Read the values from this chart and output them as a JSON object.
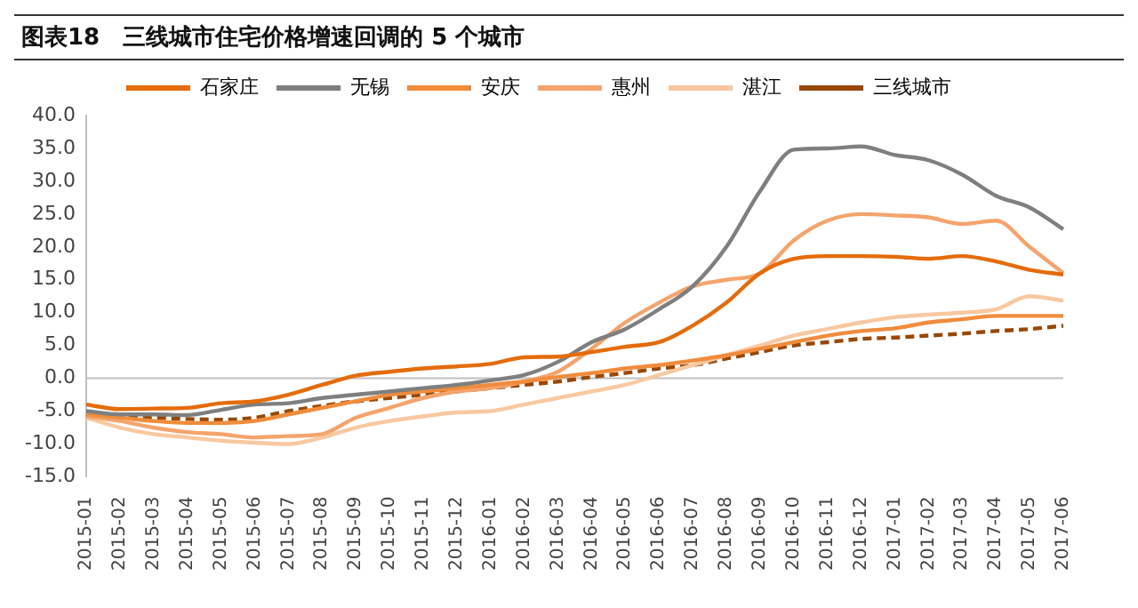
{
  "chart_data": {
    "type": "line",
    "title": "图表18　三线城市住宅价格增速回调的 5 个城市",
    "categories": [
      "2015-01",
      "2015-02",
      "2015-03",
      "2015-04",
      "2015-05",
      "2015-06",
      "2015-07",
      "2015-08",
      "2015-09",
      "2015-10",
      "2015-11",
      "2015-12",
      "2016-01",
      "2016-02",
      "2016-03",
      "2016-04",
      "2016-05",
      "2016-06",
      "2016-07",
      "2016-08",
      "2016-09",
      "2016-10",
      "2016-11",
      "2016-12",
      "2017-01",
      "2017-02",
      "2017-03",
      "2017-04",
      "2017-05",
      "2017-06"
    ],
    "series": [
      {
        "name": "石家庄",
        "color": "#e46c0a",
        "values": [
          -4,
          -4.7,
          -4.6,
          -4.5,
          -3.8,
          -3.5,
          -2.5,
          -1,
          0.4,
          1,
          1.5,
          1.8,
          2.2,
          3.2,
          3.3,
          4,
          4.8,
          5.5,
          8,
          11.5,
          16,
          18.2,
          18.6,
          18.6,
          18.5,
          18.2,
          18.6,
          17.8,
          16.5,
          15.8
        ]
      },
      {
        "name": "无锡",
        "color": "#7f7f7f",
        "values": [
          -5,
          -5.5,
          -5.5,
          -5.6,
          -4.8,
          -4,
          -3.8,
          -3,
          -2.5,
          -2,
          -1.5,
          -1,
          -0.3,
          0.5,
          2.5,
          5.5,
          7.5,
          10.5,
          14,
          20,
          28.5,
          34.8,
          35,
          35.3,
          34,
          33.2,
          31,
          27.8,
          26,
          22.7
        ]
      },
      {
        "name": "安庆",
        "color": "#f08c3c",
        "values": [
          -5.5,
          -6,
          -6.5,
          -6.8,
          -6.8,
          -6.5,
          -5.5,
          -4.5,
          -3.5,
          -2.5,
          -2,
          -1.5,
          -1,
          -0.5,
          0.2,
          0.8,
          1.5,
          2,
          2.7,
          3.5,
          4.5,
          5.5,
          6.5,
          7.2,
          7.6,
          8.5,
          9,
          9.5,
          9.5,
          9.5
        ]
      },
      {
        "name": "惠州",
        "color": "#f4a46c",
        "values": [
          -5.8,
          -6.5,
          -7.5,
          -8.2,
          -8.5,
          -9,
          -8.8,
          -8.5,
          -6,
          -4.5,
          -3,
          -2,
          -1.5,
          -0.5,
          1,
          4.5,
          8.5,
          11.5,
          14,
          15,
          16,
          21,
          24,
          25,
          24.8,
          24.5,
          23.5,
          24,
          20,
          16
        ]
      },
      {
        "name": "湛江",
        "color": "#f8c8a0",
        "values": [
          -6,
          -7.5,
          -8.5,
          -9,
          -9.5,
          -9.8,
          -10,
          -9,
          -7.5,
          -6.5,
          -5.8,
          -5.2,
          -5,
          -4,
          -3,
          -2,
          -1,
          0.5,
          2,
          3.5,
          5,
          6.5,
          7.5,
          8.5,
          9.3,
          9.7,
          10,
          10.5,
          12.5,
          11.8
        ]
      },
      {
        "name": "三线城市",
        "color": "#984807",
        "line_style": "dashed",
        "values": [
          -5.5,
          -6,
          -6,
          -6.2,
          -6.3,
          -6,
          -5,
          -4.2,
          -3.5,
          -3,
          -2.5,
          -2,
          -1.5,
          -1,
          -0.5,
          0.2,
          0.8,
          1.5,
          2,
          3,
          4,
          5,
          5.5,
          6,
          6.2,
          6.5,
          6.8,
          7.2,
          7.5,
          8
        ]
      }
    ],
    "ylim": [
      -15,
      40
    ],
    "yticks": [
      {
        "value": -15,
        "label": "-15.0"
      },
      {
        "value": -10,
        "label": "-10.0"
      },
      {
        "value": -5,
        "label": "-5.0"
      },
      {
        "value": 0,
        "label": "0.0"
      },
      {
        "value": 5,
        "label": "5.0"
      },
      {
        "value": 10,
        "label": "10.0"
      },
      {
        "value": 15,
        "label": "15.0"
      },
      {
        "value": 20,
        "label": "20.0"
      },
      {
        "value": 25,
        "label": "25.0"
      },
      {
        "value": 30,
        "label": "30.0"
      },
      {
        "value": 35,
        "label": "35.0"
      },
      {
        "value": 40,
        "label": "40.0"
      }
    ],
    "ref_lines": [
      {
        "axis": "y",
        "value": 0,
        "color": "#bfbfbf"
      }
    ],
    "legend": "top",
    "marker": "none",
    "line_style": "solid",
    "grid": false
  }
}
